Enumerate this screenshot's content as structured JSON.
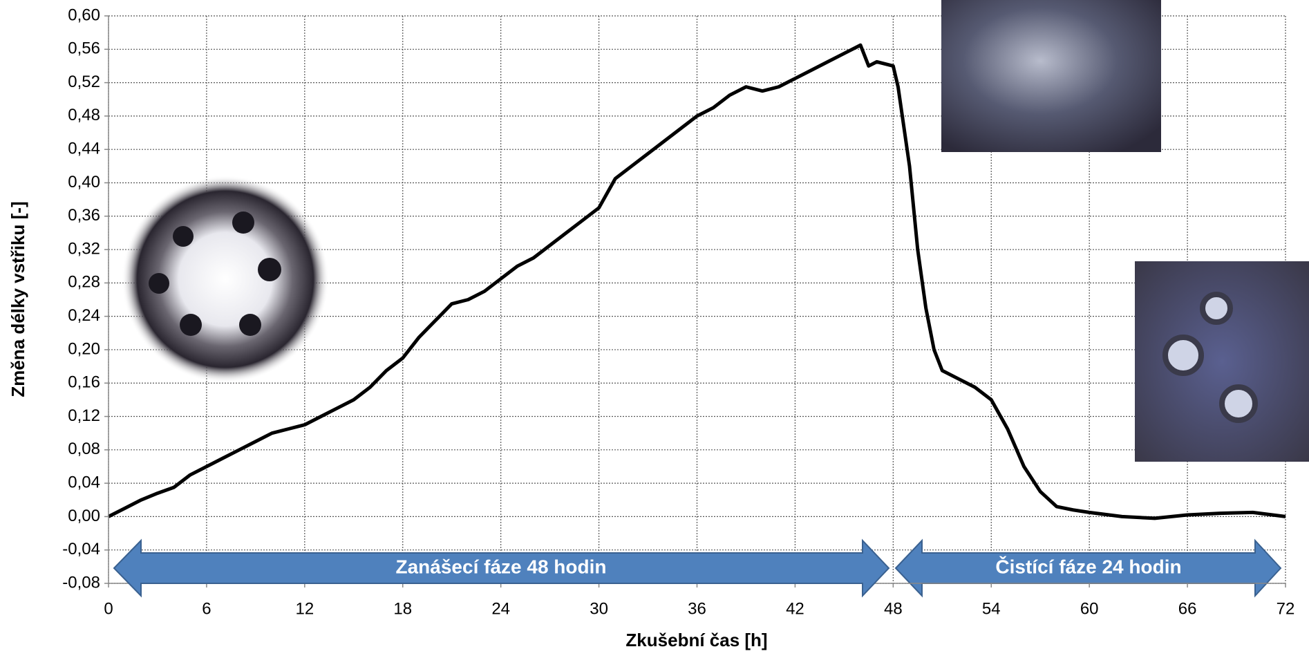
{
  "chart_data": {
    "type": "line",
    "xlabel": "Zkušební čas [h]",
    "ylabel": "Změna délky vstřiku [-]",
    "annotations": [
      "Zanášecí fáze 48 hodin",
      "Čistící fáze 24 hodin"
    ],
    "x": [
      0,
      1,
      2,
      3,
      4,
      5,
      6,
      7,
      8,
      9,
      10,
      11,
      12,
      13,
      14,
      15,
      16,
      17,
      18,
      19,
      20,
      21,
      22,
      23,
      24,
      25,
      26,
      27,
      28,
      29,
      30,
      31,
      32,
      33,
      34,
      35,
      36,
      37,
      38,
      39,
      40,
      41,
      42,
      43,
      44,
      45,
      46,
      46.5,
      47,
      48,
      48.3,
      49,
      49.5,
      50,
      50.5,
      51,
      52,
      53,
      54,
      55,
      56,
      57,
      58,
      59,
      60,
      62,
      64,
      66,
      68,
      70,
      72
    ],
    "series": [
      {
        "color": "#000000",
        "values": [
          0.0,
          0.01,
          0.02,
          0.028,
          0.035,
          0.05,
          0.06,
          0.07,
          0.08,
          0.09,
          0.1,
          0.105,
          0.11,
          0.12,
          0.13,
          0.14,
          0.155,
          0.175,
          0.19,
          0.215,
          0.235,
          0.255,
          0.26,
          0.27,
          0.285,
          0.3,
          0.31,
          0.325,
          0.34,
          0.355,
          0.37,
          0.405,
          0.42,
          0.435,
          0.45,
          0.465,
          0.48,
          0.49,
          0.505,
          0.515,
          0.51,
          0.515,
          0.525,
          0.535,
          0.545,
          0.555,
          0.565,
          0.54,
          0.545,
          0.54,
          0.515,
          0.42,
          0.32,
          0.25,
          0.2,
          0.175,
          0.165,
          0.155,
          0.14,
          0.105,
          0.06,
          0.03,
          0.012,
          0.008,
          0.005,
          0.0,
          -0.002,
          0.002,
          0.004,
          0.005,
          0.0
        ]
      }
    ],
    "xlim": [
      0,
      72
    ],
    "xticks": [
      0,
      6,
      12,
      18,
      24,
      30,
      36,
      42,
      48,
      54,
      60,
      66,
      72
    ],
    "ylim": [
      -0.08,
      0.6
    ],
    "yticks": [
      {
        "value": -0.08,
        "label": "-0,08"
      },
      {
        "value": -0.04,
        "label": "-0,04"
      },
      {
        "value": 0,
        "label": "0,00"
      },
      {
        "value": 0.04,
        "label": "0,04"
      },
      {
        "value": 0.08,
        "label": "0,08"
      },
      {
        "value": 0.12,
        "label": "0,12"
      },
      {
        "value": 0.16,
        "label": "0,16"
      },
      {
        "value": 0.2,
        "label": "0,20"
      },
      {
        "value": 0.24,
        "label": "0,24"
      },
      {
        "value": 0.28,
        "label": "0,28"
      },
      {
        "value": 0.32,
        "label": "0,32"
      },
      {
        "value": 0.36,
        "label": "0,36"
      },
      {
        "value": 0.4,
        "label": "0,40"
      },
      {
        "value": 0.44,
        "label": "0,44"
      },
      {
        "value": 0.48,
        "label": "0,48"
      },
      {
        "value": 0.52,
        "label": "0,52"
      },
      {
        "value": 0.56,
        "label": "0,56"
      },
      {
        "value": 0.6,
        "label": "0,60"
      }
    ],
    "grid": true
  }
}
